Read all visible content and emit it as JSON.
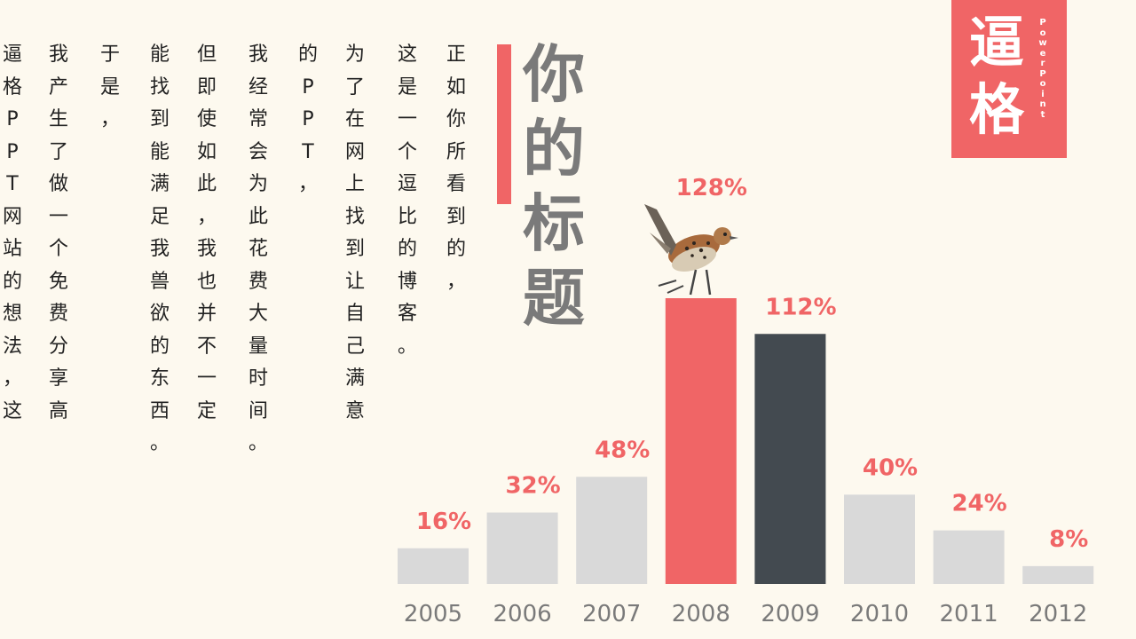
{
  "body_text": [
    "正如你所看到的，",
    "这是一个逗比的博客。",
    "为了在网上找到让自己满意",
    "的PPT，",
    "我经常会为此花费大量时间。",
    "但即使如此，我也并不一定",
    "能找到能满足我兽欲的东西。",
    "于是，",
    "我产生了做一个免费分享高",
    "逼格PPT网站的想法，这"
  ],
  "title": "你的标题",
  "logo": {
    "text": "逼格",
    "sub": "PowerPoint"
  },
  "colors": {
    "accent": "#f06566",
    "dark": "#434a50",
    "gray": "#d9d9d9",
    "label": "#f06566",
    "tick": "#7a7a7a"
  },
  "chart_data": {
    "type": "bar",
    "categories": [
      "2005",
      "2006",
      "2007",
      "2008",
      "2009",
      "2010",
      "2011",
      "2012"
    ],
    "values": [
      16,
      32,
      48,
      128,
      112,
      40,
      24,
      8
    ],
    "labels": [
      "16%",
      "32%",
      "48%",
      "128%",
      "112%",
      "40%",
      "24%",
      "8%"
    ],
    "highlight": {
      "2008": "accent",
      "2009": "dark"
    },
    "ylim": [
      0,
      128
    ],
    "grid": false,
    "axes_visible": false
  }
}
